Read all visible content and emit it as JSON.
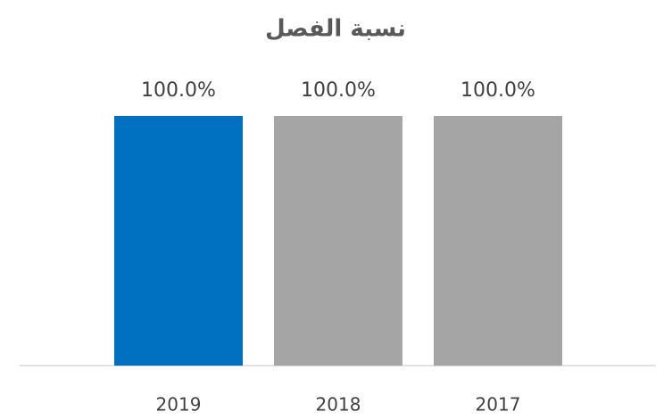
{
  "chart_data": {
    "type": "bar",
    "title": "نسبة الفصل",
    "categories": [
      "2019",
      "2018",
      "2017"
    ],
    "values": [
      100,
      100,
      100
    ],
    "value_labels": [
      "100.0%",
      "100.0%",
      "100.0%"
    ],
    "colors": [
      "#0070c0",
      "#a5a5a5",
      "#a5a5a5"
    ],
    "ylim": [
      0,
      100
    ]
  }
}
